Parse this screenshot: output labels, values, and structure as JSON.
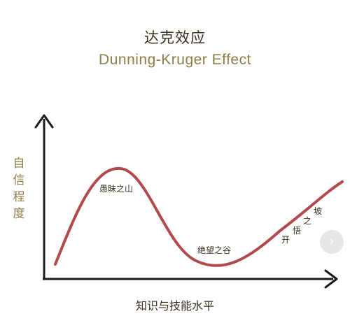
{
  "title_zh": "达克效应",
  "title_en": "Dunning-Kruger Effect",
  "y_axis_label": "自信程度",
  "x_axis_label": "知识与技能水平",
  "curve_labels": {
    "peak": "愚昧之山",
    "valley": "绝望之谷",
    "slope": [
      "开",
      "悟",
      "之",
      "坡"
    ]
  },
  "colors": {
    "curve": "#b14a4d",
    "axis": "#1a1a1a",
    "title_en": "#8f7d47",
    "y_label": "#8f7d47"
  },
  "next_icon": "chevron-right-icon",
  "next_glyph": "›"
}
